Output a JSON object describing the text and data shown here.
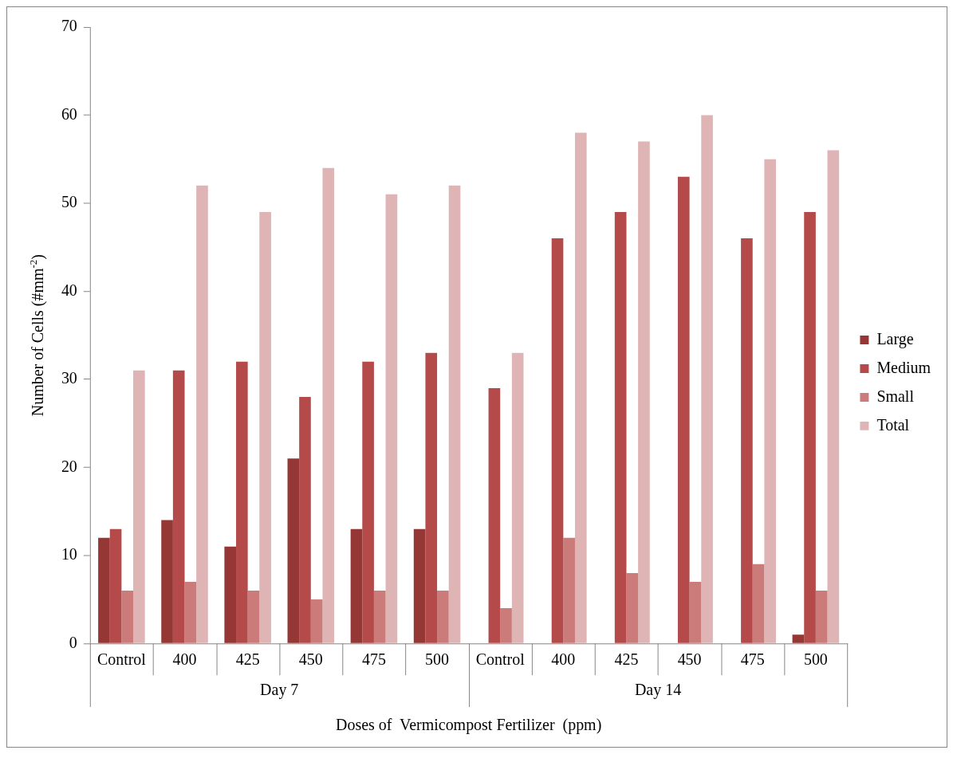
{
  "chart_data": {
    "type": "bar",
    "xlabel": "Doses of  Vermicompost Fertilizer  (ppm)",
    "ylabel": "Number of Cells (#mm$^{-2}$)",
    "categories": [
      "Control",
      "400",
      "425",
      "450",
      "475",
      "500",
      "Control",
      "400",
      "425",
      "450",
      "475",
      "500"
    ],
    "series": [
      {
        "name": "Large",
        "color": "#953735",
        "values": [
          12,
          14,
          11,
          21,
          13,
          13,
          0,
          0,
          0,
          0,
          0,
          1
        ]
      },
      {
        "name": "Medium",
        "color": "#b44b4a",
        "values": [
          13,
          31,
          32,
          28,
          32,
          33,
          29,
          46,
          49,
          53,
          46,
          49
        ]
      },
      {
        "name": "Small",
        "color": "#cc7b7b",
        "values": [
          6,
          7,
          6,
          5,
          6,
          6,
          4,
          12,
          8,
          7,
          9,
          6
        ]
      },
      {
        "name": "Total",
        "color": "#dfb4b5",
        "values": [
          31,
          52,
          49,
          54,
          51,
          52,
          33,
          58,
          57,
          60,
          55,
          56
        ]
      }
    ],
    "ylim": [
      0,
      70
    ],
    "yticks": [
      0,
      10,
      20,
      30,
      40,
      50,
      60,
      70
    ],
    "grid": false,
    "legend": "right",
    "annotations": [
      "Day 7",
      "Day 14"
    ]
  }
}
